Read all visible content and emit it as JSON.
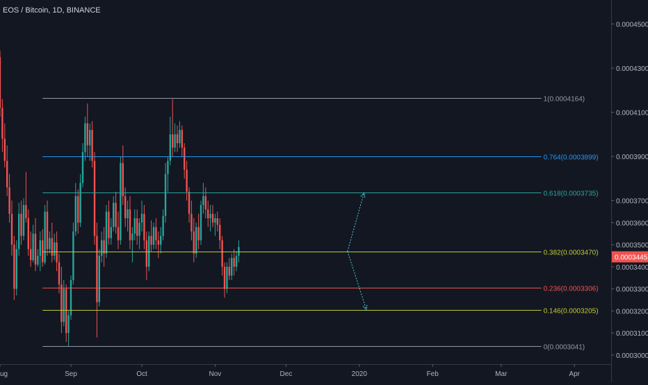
{
  "chart_data": {
    "type": "candlestick",
    "title": "EOS / Bitcoin, 1D, BINANCE",
    "current_price": {
      "value": 0.0003445,
      "label": "0.0003445"
    },
    "x_axis": {
      "labels": [
        "ug",
        "Sep",
        "Oct",
        "Nov",
        "Dec",
        "2020",
        "Feb",
        "Mar",
        "Apr"
      ],
      "positions": [
        0,
        30,
        60,
        91,
        121,
        152,
        183,
        212,
        243
      ]
    },
    "y_axis": {
      "ylim": [
        0.00029588,
        0.00046088
      ],
      "ticks": [
        {
          "value": 0.00045,
          "label": "0.0004500"
        },
        {
          "value": 0.00043,
          "label": "0.0004300"
        },
        {
          "value": 0.00041,
          "label": "0.0004100"
        },
        {
          "value": 0.00039,
          "label": "0.0003900"
        },
        {
          "value": 0.00037,
          "label": "0.0003700"
        },
        {
          "value": 0.00036,
          "label": "0.0003600"
        },
        {
          "value": 0.00035,
          "label": "0.0003500"
        },
        {
          "value": 0.00034,
          "label": "0.0003400"
        },
        {
          "value": 0.00033,
          "label": "0.0003300"
        },
        {
          "value": 0.00032,
          "label": "0.0003200"
        },
        {
          "value": 0.00031,
          "label": "0.0003100"
        },
        {
          "value": 0.0003,
          "label": "0.0003000"
        }
      ]
    },
    "fib_levels": [
      {
        "ratio": "1",
        "value": 0.0004164,
        "label": "1(0.0004164)",
        "color": "#9598a1"
      },
      {
        "ratio": "0.764",
        "value": 0.0003899,
        "label": "0.764(0.0003899)",
        "color": "#2196f3"
      },
      {
        "ratio": "0.618",
        "value": 0.0003735,
        "label": "0.618(0.0003735)",
        "color": "#26a69a"
      },
      {
        "ratio": "0.382",
        "value": 0.000347,
        "label": "0.382(0.0003470)",
        "color": "#c0ca33"
      },
      {
        "ratio": "0.236",
        "value": 0.0003306,
        "label": "0.236(0.0003306)",
        "color": "#ef5350"
      },
      {
        "ratio": "0.146",
        "value": 0.0003205,
        "label": "0.146(0.0003205)",
        "color": "#c0ca33"
      },
      {
        "ratio": "0",
        "value": 0.0003041,
        "label": "0(0.0003041)",
        "color": "#9598a1"
      }
    ],
    "fib_x_range": [
      18,
      229
    ],
    "projection_arrows": {
      "start": {
        "x": 147,
        "value": 0.000347
      },
      "up_target": {
        "x": 154,
        "value": 0.0003735
      },
      "down_target": {
        "x": 155,
        "value": 0.0003205
      },
      "color": "#4dd0e1"
    },
    "candles": [
      [
        0,
        0.000435,
        0.000438,
        0.000408,
        0.000412
      ],
      [
        1,
        0.000412,
        0.000416,
        0.000392,
        0.000398
      ],
      [
        2,
        0.000398,
        0.000405,
        0.000385,
        0.000388
      ],
      [
        3,
        0.000388,
        0.000395,
        0.000372,
        0.000376
      ],
      [
        4,
        0.000376,
        0.000382,
        0.00036,
        0.000364
      ],
      [
        5,
        0.000364,
        0.00037,
        0.000345,
        0.00035
      ],
      [
        6,
        0.00035,
        0.000354,
        0.000325,
        0.00033
      ],
      [
        7,
        0.00033,
        0.000352,
        0.000327,
        0.000348
      ],
      [
        8,
        0.000348,
        0.000369,
        0.000345,
        0.000364
      ],
      [
        9,
        0.000364,
        0.00037,
        0.00035,
        0.000354
      ],
      [
        10,
        0.000354,
        0.000371,
        0.000352,
        0.000368
      ],
      [
        11,
        0.000368,
        0.000383,
        0.00036,
        0.000362
      ],
      [
        12,
        0.000362,
        0.000366,
        0.000345,
        0.000348
      ],
      [
        13,
        0.000348,
        0.000356,
        0.00034,
        0.000343
      ],
      [
        14,
        0.000343,
        0.000359,
        0.000342,
        0.000355
      ],
      [
        15,
        0.000355,
        0.000362,
        0.000338,
        0.000341
      ],
      [
        16,
        0.000341,
        0.000348,
        0.00034,
        0.000345
      ],
      [
        17,
        0.000345,
        0.000356,
        0.000338,
        0.000352
      ],
      [
        18,
        0.000352,
        0.000357,
        0.00034,
        0.000342
      ],
      [
        19,
        0.000342,
        0.000368,
        0.000341,
        0.000365
      ],
      [
        20,
        0.000365,
        0.00037,
        0.000345,
        0.000348
      ],
      [
        21,
        0.000348,
        0.000356,
        0.000346,
        0.000353
      ],
      [
        22,
        0.000353,
        0.00036,
        0.000342,
        0.000345
      ],
      [
        23,
        0.000345,
        0.000355,
        0.000343,
        0.000351
      ],
      [
        24,
        0.000351,
        0.000356,
        0.000338,
        0.000342
      ],
      [
        25,
        0.000342,
        0.000346,
        0.000328,
        0.000332
      ],
      [
        26,
        0.000332,
        0.00034,
        0.00031,
        0.000315
      ],
      [
        27,
        0.000315,
        0.000334,
        0.000313,
        0.00033
      ],
      [
        28,
        0.00033,
        0.000332,
        0.000306,
        0.00031
      ],
      [
        29,
        0.00031,
        0.00032,
        0.000304,
        0.000318
      ],
      [
        30,
        0.000318,
        0.000336,
        0.000316,
        0.000334
      ],
      [
        31,
        0.000334,
        0.00036,
        0.000332,
        0.000356
      ],
      [
        32,
        0.000356,
        0.000378,
        0.000354,
        0.000372
      ],
      [
        33,
        0.000372,
        0.000375,
        0.000355,
        0.00036
      ],
      [
        34,
        0.00036,
        0.000382,
        0.000358,
        0.000378
      ],
      [
        35,
        0.000378,
        0.000396,
        0.000376,
        0.000392
      ],
      [
        36,
        0.000392,
        0.000408,
        0.000388,
        0.000405
      ],
      [
        37,
        0.000405,
        0.000414,
        0.00039,
        0.000395
      ],
      [
        38,
        0.000395,
        0.000405,
        0.000388,
        0.000402
      ],
      [
        39,
        0.000402,
        0.000406,
        0.000385,
        0.000388
      ],
      [
        40,
        0.000388,
        0.000392,
        0.00035,
        0.000354
      ],
      [
        41,
        0.000354,
        0.00036,
        0.000308,
        0.000324
      ],
      [
        42,
        0.000324,
        0.000348,
        0.000322,
        0.000345
      ],
      [
        43,
        0.000345,
        0.000356,
        0.000342,
        0.000352
      ],
      [
        44,
        0.000352,
        0.000358,
        0.00034,
        0.000346
      ],
      [
        45,
        0.000346,
        0.000368,
        0.000344,
        0.000365
      ],
      [
        46,
        0.000365,
        0.00037,
        0.00035,
        0.000353
      ],
      [
        47,
        0.000353,
        0.000362,
        0.00035,
        0.000358
      ],
      [
        48,
        0.000358,
        0.000372,
        0.000356,
        0.000369
      ],
      [
        49,
        0.000369,
        0.000374,
        0.000355,
        0.000358
      ],
      [
        50,
        0.000358,
        0.000365,
        0.000348,
        0.000352
      ],
      [
        51,
        0.000352,
        0.00039,
        0.00035,
        0.000387
      ],
      [
        52,
        0.000387,
        0.000395,
        0.000368,
        0.000372
      ],
      [
        53,
        0.000372,
        0.000376,
        0.000358,
        0.000362
      ],
      [
        54,
        0.000362,
        0.00037,
        0.000356,
        0.000366
      ],
      [
        55,
        0.000366,
        0.000372,
        0.000348,
        0.000352
      ],
      [
        56,
        0.000352,
        0.000358,
        0.000342,
        0.000355
      ],
      [
        57,
        0.000355,
        0.000366,
        0.000352,
        0.000362
      ],
      [
        58,
        0.000362,
        0.000366,
        0.00035,
        0.000354
      ],
      [
        59,
        0.000354,
        0.000362,
        0.000348,
        0.00036
      ],
      [
        60,
        0.00036,
        0.00037,
        0.000356,
        0.000364
      ],
      [
        61,
        0.000364,
        0.000368,
        0.000348,
        0.000352
      ],
      [
        62,
        0.000352,
        0.000356,
        0.000334,
        0.00034
      ],
      [
        63,
        0.00034,
        0.000356,
        0.000338,
        0.000354
      ],
      [
        64,
        0.000354,
        0.000361,
        0.000347,
        0.00035
      ],
      [
        65,
        0.00035,
        0.00036,
        0.000348,
        0.000358
      ],
      [
        66,
        0.000358,
        0.000362,
        0.000348,
        0.000352
      ],
      [
        67,
        0.000352,
        0.000356,
        0.000344,
        0.00035
      ],
      [
        68,
        0.00035,
        0.000358,
        0.000346,
        0.000354
      ],
      [
        69,
        0.000354,
        0.000366,
        0.000352,
        0.000363
      ],
      [
        70,
        0.000363,
        0.000387,
        0.00036,
        0.000382
      ],
      [
        71,
        0.000382,
        0.00039,
        0.000374,
        0.000388
      ],
      [
        72,
        0.000388,
        0.000408,
        0.000386,
        0.0004
      ],
      [
        73,
        0.0004,
        0.000416,
        0.00039,
        0.000394
      ],
      [
        74,
        0.000394,
        0.000405,
        0.000392,
        0.0004
      ],
      [
        75,
        0.0004,
        0.000404,
        0.000392,
        0.000396
      ],
      [
        76,
        0.000396,
        0.000406,
        0.000394,
        0.000402
      ],
      [
        77,
        0.000402,
        0.000404,
        0.00039,
        0.000394
      ],
      [
        78,
        0.000394,
        0.000396,
        0.00038,
        0.000384
      ],
      [
        79,
        0.000384,
        0.000388,
        0.00037,
        0.000374
      ],
      [
        80,
        0.000374,
        0.000376,
        0.00036,
        0.000364
      ],
      [
        81,
        0.000364,
        0.00037,
        0.000352,
        0.000356
      ],
      [
        82,
        0.000356,
        0.000362,
        0.000342,
        0.000346
      ],
      [
        83,
        0.000346,
        0.00036,
        0.000344,
        0.000358
      ],
      [
        84,
        0.000358,
        0.000364,
        0.000348,
        0.000352
      ],
      [
        85,
        0.000352,
        0.00037,
        0.00035,
        0.000368
      ],
      [
        86,
        0.000368,
        0.000378,
        0.000364,
        0.000372
      ],
      [
        87,
        0.000372,
        0.000376,
        0.000362,
        0.000366
      ],
      [
        88,
        0.000366,
        0.00037,
        0.000358,
        0.000362
      ],
      [
        89,
        0.000362,
        0.000368,
        0.000356,
        0.000364
      ],
      [
        90,
        0.000364,
        0.000368,
        0.000358,
        0.00036
      ],
      [
        91,
        0.00036,
        0.000364,
        0.000354,
        0.000362
      ],
      [
        92,
        0.000362,
        0.000365,
        0.000356,
        0.000359
      ],
      [
        93,
        0.000359,
        0.000362,
        0.000348,
        0.000352
      ],
      [
        94,
        0.000352,
        0.000354,
        0.000336,
        0.00034
      ],
      [
        95,
        0.00034,
        0.000342,
        0.000326,
        0.00033
      ],
      [
        96,
        0.00033,
        0.000342,
        0.000328,
        0.00034
      ],
      [
        97,
        0.00034,
        0.000344,
        0.000334,
        0.000336
      ],
      [
        98,
        0.000336,
        0.000346,
        0.000334,
        0.000344
      ],
      [
        99,
        0.000344,
        0.000348,
        0.000336,
        0.00034
      ],
      [
        100,
        0.00034,
        0.000347,
        0.000338,
        0.000345
      ],
      [
        101,
        0.000345,
        0.000352,
        0.000342,
        0.000349
      ]
    ]
  }
}
